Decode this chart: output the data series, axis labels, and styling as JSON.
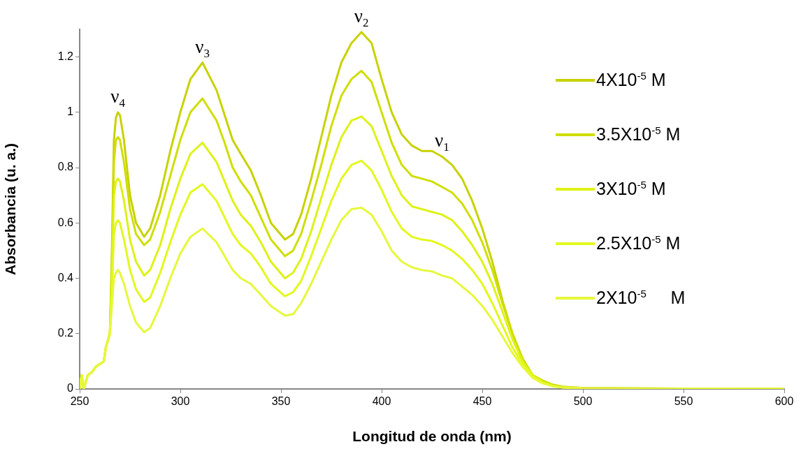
{
  "chart_data": {
    "type": "line",
    "xlabel": "Longitud de onda (nm)",
    "ylabel": "Absorbancia (u. a.)",
    "x": [
      250,
      251,
      252,
      254,
      256,
      258,
      260,
      262,
      263,
      265,
      266,
      267,
      268,
      269,
      270,
      272,
      275,
      278,
      282,
      285,
      290,
      295,
      300,
      305,
      311,
      318,
      322,
      326,
      330,
      335,
      340,
      345,
      352,
      356,
      360,
      365,
      370,
      375,
      380,
      385,
      390,
      395,
      400,
      405,
      410,
      415,
      420,
      425,
      430,
      435,
      440,
      445,
      450,
      455,
      460,
      465,
      470,
      475,
      480,
      485,
      490,
      500,
      550,
      600
    ],
    "series": [
      {
        "name": "4X10$^{-5}$ M",
        "color": "#c8d200",
        "values": [
          0,
          0.05,
          0,
          0.05,
          0.06,
          0.08,
          0.09,
          0.1,
          0.15,
          0.2,
          0.5,
          0.9,
          0.98,
          1.0,
          0.99,
          0.9,
          0.7,
          0.6,
          0.55,
          0.58,
          0.7,
          0.86,
          1.0,
          1.12,
          1.18,
          1.08,
          0.99,
          0.9,
          0.85,
          0.79,
          0.7,
          0.6,
          0.54,
          0.56,
          0.63,
          0.76,
          0.91,
          1.06,
          1.18,
          1.25,
          1.29,
          1.25,
          1.12,
          1.0,
          0.92,
          0.88,
          0.86,
          0.86,
          0.84,
          0.81,
          0.76,
          0.68,
          0.58,
          0.46,
          0.32,
          0.2,
          0.11,
          0.05,
          0.03,
          0.015,
          0.008,
          0.003,
          0.001,
          0
        ]
      },
      {
        "name": "3.5X10$^{-5}$ M",
        "color": "#d0de00",
        "values": [
          0,
          0.05,
          0,
          0.05,
          0.06,
          0.08,
          0.09,
          0.1,
          0.15,
          0.2,
          0.45,
          0.82,
          0.9,
          0.91,
          0.9,
          0.82,
          0.65,
          0.56,
          0.52,
          0.54,
          0.64,
          0.77,
          0.9,
          1.0,
          1.05,
          0.97,
          0.89,
          0.8,
          0.75,
          0.7,
          0.62,
          0.54,
          0.48,
          0.5,
          0.56,
          0.68,
          0.81,
          0.95,
          1.06,
          1.12,
          1.15,
          1.11,
          1.0,
          0.89,
          0.81,
          0.77,
          0.76,
          0.75,
          0.73,
          0.71,
          0.67,
          0.61,
          0.53,
          0.43,
          0.31,
          0.2,
          0.11,
          0.05,
          0.03,
          0.015,
          0.007,
          0.003,
          0.001,
          0
        ]
      },
      {
        "name": "3X10$^{-5}$ M",
        "color": "#def216",
        "values": [
          0,
          0.05,
          0,
          0.05,
          0.06,
          0.08,
          0.09,
          0.1,
          0.15,
          0.2,
          0.4,
          0.7,
          0.75,
          0.76,
          0.75,
          0.68,
          0.54,
          0.46,
          0.41,
          0.43,
          0.52,
          0.65,
          0.76,
          0.85,
          0.89,
          0.82,
          0.75,
          0.68,
          0.63,
          0.59,
          0.53,
          0.46,
          0.4,
          0.42,
          0.47,
          0.57,
          0.69,
          0.81,
          0.91,
          0.97,
          0.985,
          0.95,
          0.86,
          0.77,
          0.7,
          0.66,
          0.65,
          0.64,
          0.63,
          0.61,
          0.57,
          0.52,
          0.46,
          0.38,
          0.28,
          0.18,
          0.1,
          0.05,
          0.025,
          0.012,
          0.006,
          0.002,
          0.001,
          0
        ]
      },
      {
        "name": "2.5X10$^{-5}$ M",
        "color": "#e3f81e",
        "values": [
          0,
          0.05,
          0,
          0.05,
          0.06,
          0.08,
          0.09,
          0.1,
          0.15,
          0.2,
          0.35,
          0.56,
          0.6,
          0.61,
          0.6,
          0.54,
          0.43,
          0.36,
          0.315,
          0.33,
          0.42,
          0.53,
          0.63,
          0.71,
          0.74,
          0.68,
          0.62,
          0.56,
          0.52,
          0.49,
          0.44,
          0.38,
          0.335,
          0.35,
          0.39,
          0.48,
          0.58,
          0.68,
          0.76,
          0.81,
          0.825,
          0.79,
          0.72,
          0.64,
          0.58,
          0.55,
          0.54,
          0.535,
          0.52,
          0.5,
          0.47,
          0.43,
          0.38,
          0.31,
          0.23,
          0.15,
          0.09,
          0.045,
          0.022,
          0.01,
          0.005,
          0.002,
          0.001,
          0
        ]
      },
      {
        "name": "2X10$^{-5}$     M",
        "color": "#e6f83a",
        "values": [
          0,
          0.05,
          0,
          0.05,
          0.06,
          0.08,
          0.09,
          0.1,
          0.15,
          0.2,
          0.3,
          0.4,
          0.42,
          0.43,
          0.42,
          0.38,
          0.3,
          0.24,
          0.205,
          0.22,
          0.3,
          0.4,
          0.49,
          0.55,
          0.58,
          0.53,
          0.48,
          0.43,
          0.4,
          0.38,
          0.34,
          0.3,
          0.265,
          0.27,
          0.31,
          0.38,
          0.46,
          0.54,
          0.61,
          0.65,
          0.655,
          0.63,
          0.57,
          0.5,
          0.46,
          0.44,
          0.43,
          0.425,
          0.41,
          0.4,
          0.37,
          0.34,
          0.3,
          0.25,
          0.19,
          0.13,
          0.08,
          0.04,
          0.02,
          0.01,
          0.005,
          0.002,
          0.001,
          0
        ]
      }
    ],
    "xlim": [
      250,
      600
    ],
    "xticks": [
      250,
      300,
      350,
      400,
      450,
      500,
      550,
      600
    ],
    "ylim": [
      0,
      1.3
    ],
    "yticks": [
      {
        "value": 0,
        "label": "0"
      },
      {
        "value": 0.2,
        "label": "0.2"
      },
      {
        "value": 0.4,
        "label": "0.4"
      },
      {
        "value": 0.6,
        "label": "0.6"
      },
      {
        "value": 0.8,
        "label": "0.8"
      },
      {
        "value": 1,
        "label": "1"
      },
      {
        "value": 1.2,
        "label": "1.2"
      }
    ],
    "annotations": [
      {
        "text": "ν$_{4}$",
        "x": 269,
        "y": 1.0
      },
      {
        "text": "ν$_{3}$",
        "x": 311,
        "y": 1.18
      },
      {
        "text": "ν$_{2}$",
        "x": 390,
        "y": 1.29
      },
      {
        "text": "ν$_{1}$",
        "x": 430,
        "y": 0.84
      }
    ],
    "grid": false,
    "legend": "right",
    "marker": "none",
    "line_style": "solid"
  }
}
